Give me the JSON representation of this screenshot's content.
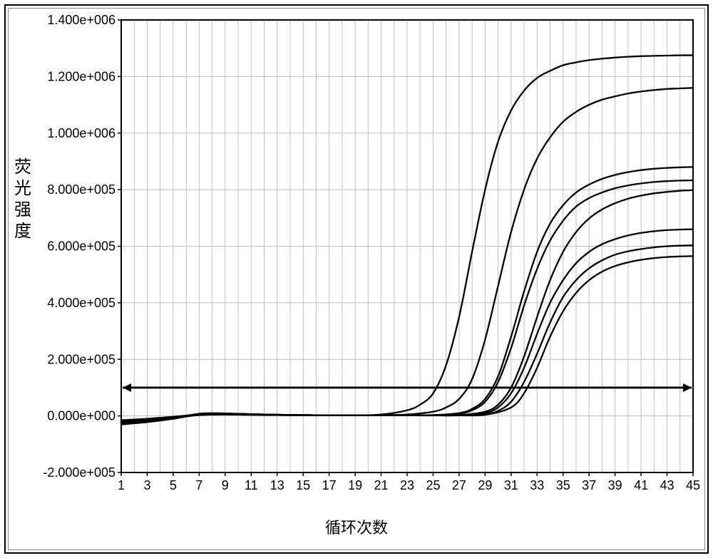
{
  "chart": {
    "type": "line",
    "background_color": "#ffffff",
    "plot_bg_color": "#ffffff",
    "grid_color": "#bfbfbf",
    "axis_color": "#000000",
    "line_color": "#000000",
    "line_width": 2.3,
    "threshold": {
      "y": 100000,
      "color": "#000000",
      "width": 2.8,
      "arrows": true
    },
    "title": "",
    "xlabel": "循环次数",
    "ylabel": "荧光强度",
    "label_fontsize": 22,
    "ytick_fontsize": 18,
    "xtick_fontsize": 18,
    "xlim": [
      1,
      45
    ],
    "ylim": [
      -200000,
      1400000
    ],
    "xtick_step": 2,
    "xtick_labels": [
      "1",
      "3",
      "5",
      "7",
      "9",
      "11",
      "13",
      "15",
      "17",
      "19",
      "21",
      "23",
      "25",
      "27",
      "29",
      "31",
      "33",
      "35",
      "37",
      "39",
      "41",
      "43",
      "45"
    ],
    "ytick_step": 200000,
    "ytick_labels": [
      "-2.000e+005",
      "0.000e+000",
      "2.000e+005",
      "4.000e+005",
      "6.000e+005",
      "8.000e+005",
      "1.000e+006",
      "1.200e+006",
      "1.400e+006"
    ],
    "grid_minor_x_step": 1,
    "series": [
      {
        "name": "curve-1",
        "x": [
          1,
          3,
          5,
          7,
          9,
          11,
          13,
          15,
          17,
          19,
          21,
          23,
          24,
          25,
          26,
          27,
          28,
          29,
          30,
          31,
          32,
          33,
          34,
          35,
          36,
          37,
          38,
          39,
          40,
          41,
          42,
          43,
          44,
          45
        ],
        "y": [
          -25000,
          -18000,
          -10000,
          8000,
          9000,
          6000,
          4000,
          3000,
          2000,
          2000,
          5000,
          20000,
          40000,
          80000,
          180000,
          350000,
          580000,
          800000,
          970000,
          1080000,
          1150000,
          1195000,
          1220000,
          1240000,
          1250000,
          1258000,
          1263000,
          1267000,
          1270000,
          1272000,
          1273000,
          1274000,
          1275000,
          1275000
        ]
      },
      {
        "name": "curve-2",
        "x": [
          1,
          3,
          5,
          7,
          9,
          11,
          13,
          15,
          17,
          19,
          21,
          23,
          25,
          26,
          27,
          28,
          29,
          30,
          31,
          32,
          33,
          34,
          35,
          36,
          37,
          38,
          39,
          40,
          41,
          42,
          43,
          44,
          45
        ],
        "y": [
          -30000,
          -22000,
          -10000,
          5000,
          8000,
          6000,
          4000,
          3000,
          2000,
          2000,
          3000,
          5000,
          15000,
          30000,
          60000,
          130000,
          270000,
          460000,
          650000,
          800000,
          910000,
          985000,
          1040000,
          1075000,
          1100000,
          1118000,
          1130000,
          1140000,
          1147000,
          1152000,
          1156000,
          1158000,
          1160000
        ]
      },
      {
        "name": "curve-3",
        "x": [
          1,
          3,
          5,
          7,
          9,
          11,
          13,
          15,
          17,
          19,
          21,
          23,
          25,
          27,
          28,
          29,
          30,
          31,
          32,
          33,
          34,
          35,
          36,
          37,
          38,
          39,
          40,
          41,
          42,
          43,
          44,
          45
        ],
        "y": [
          -20000,
          -12000,
          -5000,
          6000,
          8000,
          6000,
          4000,
          3000,
          2000,
          2000,
          2000,
          2000,
          3000,
          10000,
          25000,
          60000,
          140000,
          280000,
          440000,
          580000,
          680000,
          745000,
          790000,
          818000,
          838000,
          852000,
          862000,
          869000,
          874000,
          877000,
          879000,
          880000
        ]
      },
      {
        "name": "curve-4",
        "x": [
          1,
          3,
          5,
          7,
          9,
          11,
          13,
          15,
          17,
          19,
          21,
          23,
          25,
          27,
          28,
          29,
          30,
          31,
          32,
          33,
          34,
          35,
          36,
          37,
          38,
          39,
          40,
          41,
          42,
          43,
          44,
          45
        ],
        "y": [
          -15000,
          -10000,
          -3000,
          5000,
          7000,
          5000,
          4000,
          3000,
          2000,
          2000,
          2000,
          2000,
          2000,
          8000,
          20000,
          50000,
          120000,
          240000,
          390000,
          520000,
          620000,
          690000,
          740000,
          770000,
          790000,
          805000,
          815000,
          822000,
          827000,
          830000,
          832000,
          833000
        ]
      },
      {
        "name": "curve-5",
        "x": [
          1,
          3,
          5,
          7,
          9,
          11,
          13,
          15,
          17,
          19,
          21,
          23,
          25,
          27,
          29,
          30,
          31,
          32,
          33,
          34,
          35,
          36,
          37,
          38,
          39,
          40,
          41,
          42,
          43,
          44,
          45
        ],
        "y": [
          -28000,
          -18000,
          -8000,
          5000,
          7000,
          5000,
          4000,
          3000,
          2000,
          2000,
          2000,
          2000,
          2000,
          3000,
          15000,
          40000,
          100000,
          210000,
          350000,
          480000,
          580000,
          650000,
          698000,
          730000,
          752000,
          768000,
          779000,
          787000,
          792000,
          796000,
          798000
        ]
      },
      {
        "name": "curve-6",
        "x": [
          1,
          3,
          5,
          7,
          9,
          11,
          13,
          15,
          17,
          19,
          21,
          23,
          25,
          27,
          29,
          30,
          31,
          32,
          33,
          34,
          35,
          36,
          37,
          38,
          39,
          40,
          41,
          42,
          43,
          44,
          45
        ],
        "y": [
          -18000,
          -12000,
          -5000,
          4000,
          6000,
          5000,
          4000,
          3000,
          2000,
          2000,
          2000,
          2000,
          2000,
          2000,
          10000,
          30000,
          80000,
          170000,
          290000,
          400000,
          480000,
          540000,
          580000,
          607000,
          625000,
          638000,
          647000,
          653000,
          657000,
          659000,
          660000
        ]
      },
      {
        "name": "curve-7",
        "x": [
          1,
          3,
          5,
          7,
          9,
          11,
          13,
          15,
          17,
          19,
          21,
          23,
          25,
          27,
          29,
          30,
          31,
          32,
          33,
          34,
          35,
          36,
          37,
          38,
          39,
          40,
          41,
          42,
          43,
          44,
          45
        ],
        "y": [
          -22000,
          -15000,
          -7000,
          3000,
          5000,
          4000,
          3000,
          2000,
          2000,
          2000,
          2000,
          2000,
          2000,
          2000,
          6000,
          18000,
          50000,
          120000,
          220000,
          330000,
          420000,
          480000,
          522000,
          550000,
          570000,
          582000,
          590000,
          596000,
          600000,
          602000,
          603000
        ]
      },
      {
        "name": "curve-8",
        "x": [
          1,
          3,
          5,
          7,
          9,
          11,
          13,
          15,
          17,
          19,
          21,
          23,
          25,
          27,
          29,
          31,
          32,
          33,
          34,
          35,
          36,
          37,
          38,
          39,
          40,
          41,
          42,
          43,
          44,
          45
        ],
        "y": [
          -25000,
          -18000,
          -8000,
          3000,
          5000,
          4000,
          3000,
          2000,
          2000,
          2000,
          2000,
          2000,
          2000,
          2000,
          4000,
          30000,
          80000,
          170000,
          280000,
          370000,
          435000,
          480000,
          510000,
          530000,
          543000,
          552000,
          558000,
          562000,
          564000,
          565000
        ]
      }
    ]
  }
}
